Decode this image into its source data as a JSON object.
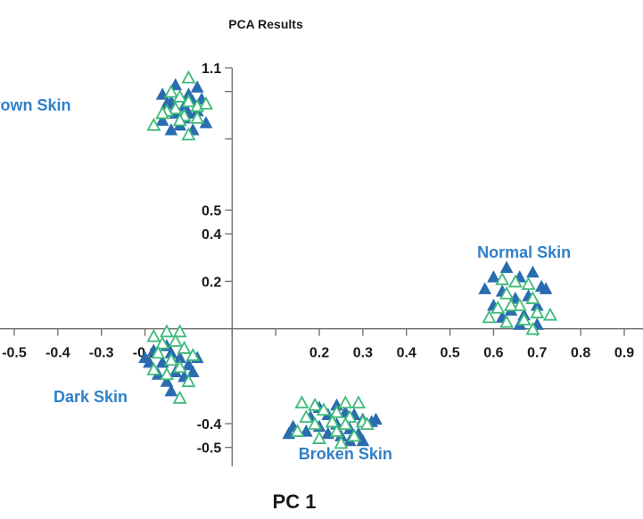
{
  "chart_data": {
    "type": "scatter",
    "title": "PCA Results",
    "xlabel": "PC 1",
    "ylabel": "",
    "xlim": [
      -0.5,
      0.9
    ],
    "ylim": [
      -0.55,
      1.1
    ],
    "grid": false,
    "legend": "none",
    "x_ticks": [
      {
        "value": -0.5,
        "label": "-0.5"
      },
      {
        "value": -0.4,
        "label": "-0.4"
      },
      {
        "value": -0.3,
        "label": "-0.3"
      },
      {
        "value": -0.2,
        "label": "-0.2"
      },
      {
        "value": 0.2,
        "label": "0.2"
      },
      {
        "value": 0.3,
        "label": "0.3"
      },
      {
        "value": 0.4,
        "label": "0.4"
      },
      {
        "value": 0.5,
        "label": "0.5"
      },
      {
        "value": 0.6,
        "label": "0.6"
      },
      {
        "value": 0.7,
        "label": "0.7"
      },
      {
        "value": 0.8,
        "label": "0.8"
      },
      {
        "value": 0.9,
        "label": "0.9"
      }
    ],
    "x_minor_ticks": [
      0.0,
      0.1
    ],
    "y_ticks": [
      {
        "value": 1.1,
        "label": "1.1"
      },
      {
        "value": 0.5,
        "label": "0.5"
      },
      {
        "value": 0.4,
        "label": "0.4"
      },
      {
        "value": 0.2,
        "label": "0.2"
      },
      {
        "value": -0.4,
        "label": "-0.4"
      },
      {
        "value": -0.5,
        "label": "-0.5"
      }
    ],
    "y_minor_ticks": [
      1.0,
      0.8
    ],
    "colors": {
      "filled": "#2b6cb0",
      "hollow": "#3dbb7a",
      "label": "#2f80c8",
      "axis": "#6b6b6b"
    },
    "clusters": [
      {
        "label": "Brown Skin",
        "label_anchor": [
          -0.37,
          0.92
        ],
        "label_align": "end"
      },
      {
        "label": "Normal Skin",
        "label_anchor": [
          0.67,
          0.3
        ],
        "label_align": "middle"
      },
      {
        "label": "Dark Skin",
        "label_anchor": [
          -0.24,
          -0.31
        ],
        "label_align": "end"
      },
      {
        "label": "Broken Skin",
        "label_anchor": [
          0.26,
          -0.55
        ],
        "label_align": "middle"
      }
    ],
    "series": [
      {
        "marker": "filled-triangle",
        "points": [
          [
            -0.13,
            1.03
          ],
          [
            -0.12,
            0.98
          ],
          [
            -0.14,
            0.96
          ],
          [
            -0.1,
            0.99
          ],
          [
            -0.08,
            1.02
          ],
          [
            -0.11,
            0.94
          ],
          [
            -0.09,
            0.96
          ],
          [
            -0.13,
            0.91
          ],
          [
            -0.11,
            0.89
          ],
          [
            -0.08,
            0.92
          ],
          [
            -0.15,
            0.95
          ],
          [
            -0.16,
            0.99
          ],
          [
            -0.07,
            0.97
          ],
          [
            -0.12,
            0.86
          ],
          [
            -0.09,
            0.84
          ],
          [
            -0.14,
            0.84
          ],
          [
            -0.16,
            0.88
          ],
          [
            -0.06,
            0.87
          ],
          [
            -0.1,
            0.91
          ],
          [
            0.63,
            0.26
          ],
          [
            0.66,
            0.22
          ],
          [
            0.6,
            0.22
          ],
          [
            0.69,
            0.24
          ],
          [
            0.71,
            0.18
          ],
          [
            0.62,
            0.16
          ],
          [
            0.65,
            0.13
          ],
          [
            0.68,
            0.14
          ],
          [
            0.72,
            0.17
          ],
          [
            0.6,
            0.1
          ],
          [
            0.64,
            0.08
          ],
          [
            0.67,
            0.06
          ],
          [
            0.7,
            0.1
          ],
          [
            0.58,
            0.17
          ],
          [
            0.66,
            0.02
          ],
          [
            0.7,
            0.02
          ],
          [
            0.62,
            0.05
          ],
          [
            -0.15,
            -0.07
          ],
          [
            -0.18,
            -0.09
          ],
          [
            -0.12,
            -0.12
          ],
          [
            -0.16,
            -0.14
          ],
          [
            -0.1,
            -0.15
          ],
          [
            -0.14,
            -0.1
          ],
          [
            -0.19,
            -0.14
          ],
          [
            -0.13,
            -0.18
          ],
          [
            -0.17,
            -0.19
          ],
          [
            -0.11,
            -0.2
          ],
          [
            -0.09,
            -0.18
          ],
          [
            -0.15,
            -0.22
          ],
          [
            -0.08,
            -0.12
          ],
          [
            -0.2,
            -0.12
          ],
          [
            -0.14,
            -0.26
          ],
          [
            0.2,
            -0.33
          ],
          [
            0.24,
            -0.32
          ],
          [
            0.26,
            -0.35
          ],
          [
            0.22,
            -0.36
          ],
          [
            0.28,
            -0.36
          ],
          [
            0.18,
            -0.37
          ],
          [
            0.3,
            -0.38
          ],
          [
            0.32,
            -0.39
          ],
          [
            0.24,
            -0.4
          ],
          [
            0.2,
            -0.41
          ],
          [
            0.27,
            -0.42
          ],
          [
            0.14,
            -0.41
          ],
          [
            0.22,
            -0.44
          ],
          [
            0.25,
            -0.45
          ],
          [
            0.29,
            -0.44
          ],
          [
            0.17,
            -0.43
          ],
          [
            0.13,
            -0.44
          ],
          [
            0.27,
            -0.47
          ],
          [
            0.3,
            -0.47
          ],
          [
            0.33,
            -0.38
          ]
        ]
      },
      {
        "marker": "hollow-triangle",
        "points": [
          [
            -0.1,
            1.06
          ],
          [
            -0.14,
            1.0
          ],
          [
            -0.12,
            0.98
          ],
          [
            -0.1,
            0.96
          ],
          [
            -0.08,
            0.94
          ],
          [
            -0.13,
            0.93
          ],
          [
            -0.15,
            0.92
          ],
          [
            -0.11,
            0.9
          ],
          [
            -0.16,
            0.91
          ],
          [
            -0.12,
            0.88
          ],
          [
            -0.18,
            0.86
          ],
          [
            -0.06,
            0.95
          ],
          [
            -0.08,
            0.89
          ],
          [
            -0.1,
            0.82
          ],
          [
            0.62,
            0.21
          ],
          [
            0.65,
            0.2
          ],
          [
            0.68,
            0.19
          ],
          [
            0.63,
            0.15
          ],
          [
            0.69,
            0.13
          ],
          [
            0.7,
            0.07
          ],
          [
            0.66,
            0.1
          ],
          [
            0.61,
            0.09
          ],
          [
            0.59,
            0.05
          ],
          [
            0.63,
            0.03
          ],
          [
            0.67,
            0.04
          ],
          [
            0.73,
            0.06
          ],
          [
            0.64,
            0.1
          ],
          [
            0.69,
            0.0
          ],
          [
            -0.15,
            -0.01
          ],
          [
            -0.12,
            -0.01
          ],
          [
            -0.18,
            -0.03
          ],
          [
            -0.16,
            -0.06
          ],
          [
            -0.13,
            -0.05
          ],
          [
            -0.11,
            -0.08
          ],
          [
            -0.17,
            -0.1
          ],
          [
            -0.14,
            -0.13
          ],
          [
            -0.09,
            -0.11
          ],
          [
            -0.12,
            -0.16
          ],
          [
            -0.1,
            -0.22
          ],
          [
            -0.15,
            -0.19
          ],
          [
            -0.12,
            -0.29
          ],
          [
            -0.18,
            -0.17
          ],
          [
            0.16,
            -0.31
          ],
          [
            0.19,
            -0.32
          ],
          [
            0.26,
            -0.31
          ],
          [
            0.29,
            -0.31
          ],
          [
            0.21,
            -0.34
          ],
          [
            0.24,
            -0.35
          ],
          [
            0.17,
            -0.37
          ],
          [
            0.27,
            -0.37
          ],
          [
            0.3,
            -0.39
          ],
          [
            0.23,
            -0.39
          ],
          [
            0.19,
            -0.4
          ],
          [
            0.26,
            -0.4
          ],
          [
            0.15,
            -0.43
          ],
          [
            0.24,
            -0.43
          ],
          [
            0.28,
            -0.45
          ],
          [
            0.2,
            -0.46
          ],
          [
            0.25,
            -0.48
          ],
          [
            0.31,
            -0.4
          ]
        ]
      }
    ]
  }
}
